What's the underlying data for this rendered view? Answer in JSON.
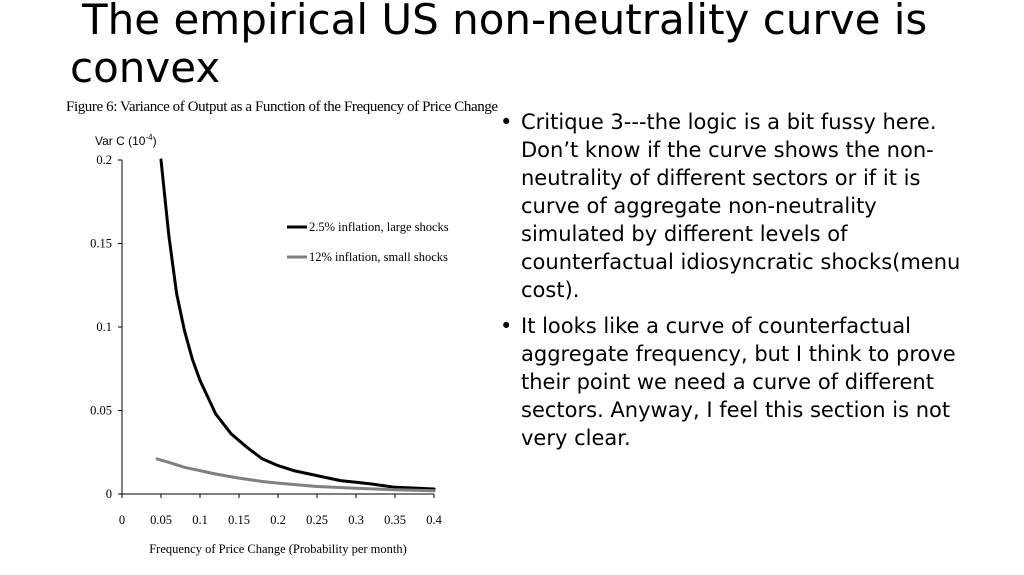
{
  "title": {
    "line1": "The empirical US non-neutrality curve is",
    "line2": "convex"
  },
  "figure": {
    "caption": "Figure 6: Variance of Output as a Function of the Frequency of Price Change"
  },
  "bullets": [
    "Critique 3---the logic is a bit fussy here. Don’t know if the curve shows the non-neutrality of different sectors or if it is curve of aggregate non-neutrality simulated by different levels of counterfactual idiosyncratic shocks(menu cost).",
    "It looks like a curve of counterfactual aggregate frequency, but I think to prove their point we need a curve of different sectors. Anyway, I feel this section is not very clear."
  ],
  "chart_data": {
    "type": "line",
    "title": "Figure 6: Variance of Output as a Function of the Frequency of Price Change",
    "ylabel": "Var C (10",
    "ylabel_exp": "-4",
    "ylabel_close": ")",
    "xlabel": "Frequency of Price Change (Probability per month)",
    "xlim": [
      0,
      0.4
    ],
    "ylim": [
      0,
      0.2
    ],
    "xticks": [
      "0",
      "0.05",
      "0.1",
      "0.15",
      "0.2",
      "0.25",
      "0.3",
      "0.35",
      "0.4"
    ],
    "yticks": [
      "0",
      "0.05",
      "0.1",
      "0.15",
      "0.2"
    ],
    "grid": false,
    "legend_position": "upper-right",
    "series": [
      {
        "name": "2.5% inflation, large shocks",
        "color": "#000000",
        "x": [
          0.05,
          0.06,
          0.07,
          0.08,
          0.09,
          0.1,
          0.12,
          0.14,
          0.16,
          0.18,
          0.2,
          0.22,
          0.25,
          0.28,
          0.3,
          0.32,
          0.35,
          0.38,
          0.4
        ],
        "y": [
          0.2,
          0.155,
          0.12,
          0.098,
          0.081,
          0.068,
          0.048,
          0.036,
          0.028,
          0.021,
          0.017,
          0.014,
          0.011,
          0.008,
          0.007,
          0.006,
          0.004,
          0.0035,
          0.003
        ]
      },
      {
        "name": "12% inflation, small shocks",
        "color": "#808080",
        "x": [
          0.045,
          0.06,
          0.08,
          0.1,
          0.12,
          0.15,
          0.18,
          0.2,
          0.25,
          0.3,
          0.35,
          0.4
        ],
        "y": [
          0.021,
          0.019,
          0.016,
          0.014,
          0.012,
          0.0095,
          0.0075,
          0.0065,
          0.0045,
          0.0035,
          0.0025,
          0.002
        ]
      }
    ]
  }
}
